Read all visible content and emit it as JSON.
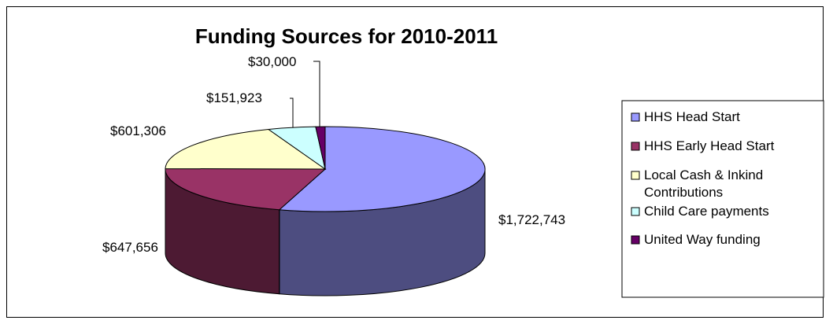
{
  "chart_data": {
    "type": "pie",
    "title": "Funding Sources for 2010-2011",
    "categories": [
      "HHS Head Start",
      "HHS Early Head Start",
      "Local Cash & Inkind Contributions",
      "Child Care payments",
      "United Way funding"
    ],
    "legend_lines": [
      [
        "HHS Head Start"
      ],
      [
        "HHS Early Head Start"
      ],
      [
        "Local Cash & Inkind",
        "Contributions"
      ],
      [
        "Child Care payments"
      ],
      [
        "United Way funding"
      ]
    ],
    "values": [
      1722743,
      647656,
      601306,
      151923,
      30000
    ],
    "labels": [
      "$1,722,743",
      "$647,656",
      "$601,306",
      "$151,923",
      "$30,000"
    ],
    "colors": [
      "#9999FF",
      "#993366",
      "#FFFFCC",
      "#CCFFFF",
      "#660066"
    ],
    "legend_position": "right",
    "style": "3d"
  }
}
